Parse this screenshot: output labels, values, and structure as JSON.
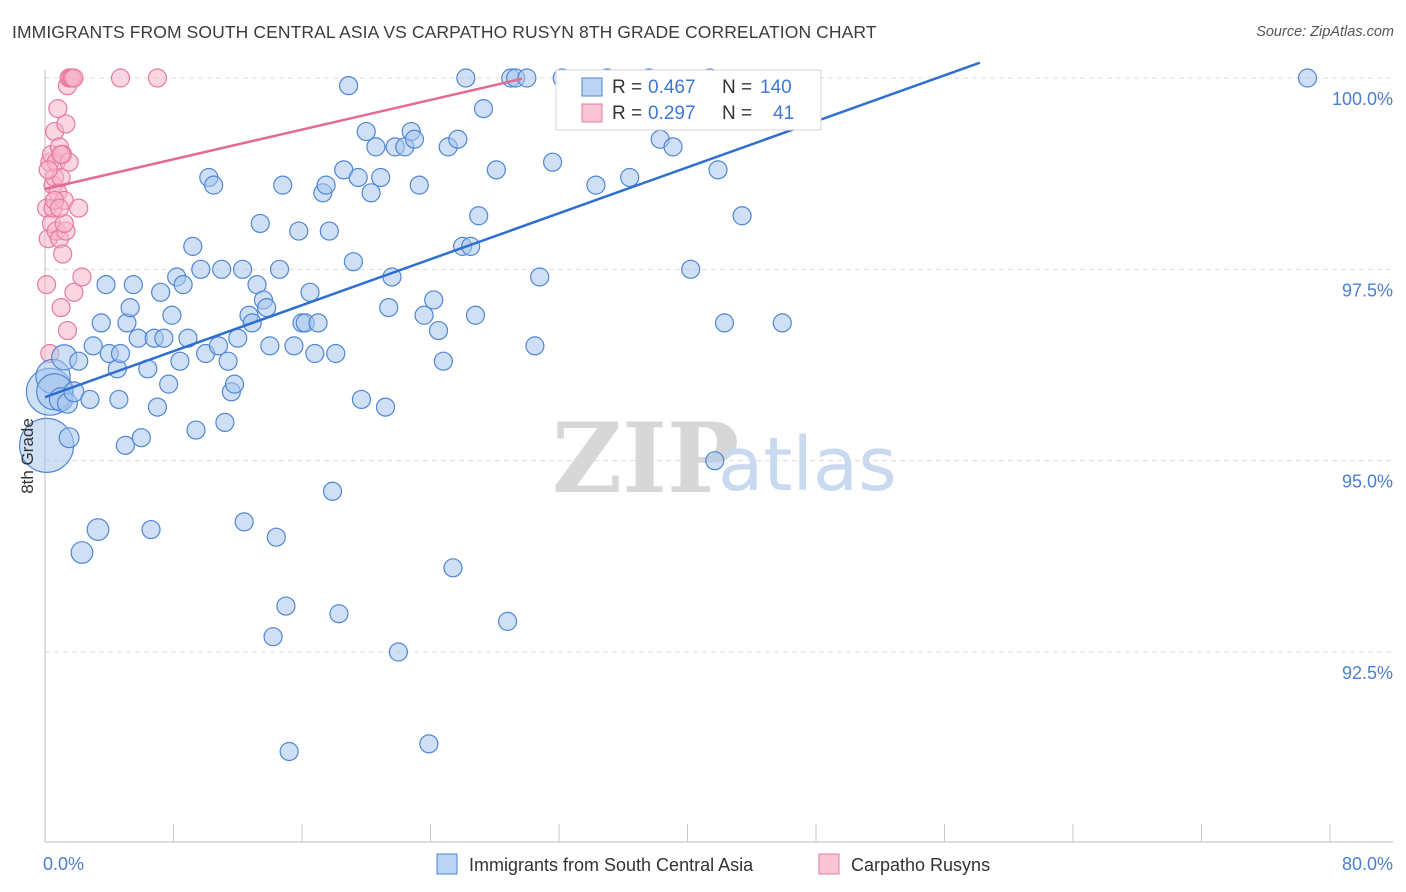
{
  "header": {
    "title": "IMMIGRANTS FROM SOUTH CENTRAL ASIA VS CARPATHO RUSYN 8TH GRADE CORRELATION CHART",
    "source": "Source: ZipAtlas.com"
  },
  "watermark": {
    "zip": "ZIP",
    "atlas": "atlas"
  },
  "colors": {
    "blue": "#4f86d4",
    "blue_fill": "#a8c7ef",
    "pink": "#e7799f",
    "pink_fill": "#f6b5c9",
    "blue_line": "#2f6fcf",
    "pink_line": "#e46b93"
  },
  "chart_data": {
    "type": "scatter",
    "title": "IMMIGRANTS FROM SOUTH CENTRAL ASIA VS CARPATHO RUSYN 8TH GRADE CORRELATION CHART",
    "xlabel": "",
    "ylabel": "8th Grade",
    "xlim": [
      0,
      80
    ],
    "ylim": [
      90.0,
      100.4
    ],
    "x_tick_labels": [
      "0.0%",
      "80.0%"
    ],
    "y_ticks": [
      92.5,
      95.0,
      97.5,
      100.0
    ],
    "y_tick_labels": [
      "92.5%",
      "95.0%",
      "97.5%",
      "100.0%"
    ],
    "grid": true,
    "legend_top": [
      {
        "series": "blue",
        "r_label": "R =",
        "r_value": "0.467",
        "n_label": "N =",
        "n_value": "140"
      },
      {
        "series": "pink",
        "r_label": "R =",
        "r_value": "0.297",
        "n_label": "N =",
        "n_value": "41"
      }
    ],
    "legend_bottom": [
      "Immigrants from South Central Asia",
      "Carpatho Rusyns"
    ],
    "series": [
      {
        "name": "Immigrants from South Central Asia",
        "color": "blue",
        "trend": {
          "x": [
            0,
            58.2
          ],
          "y": [
            95.83,
            100.2
          ]
        },
        "points": [
          [
            0.1,
            95.2,
            3
          ],
          [
            0.3,
            95.9,
            2.6
          ],
          [
            0.5,
            96.1,
            1.9
          ],
          [
            0.6,
            95.9,
            2
          ],
          [
            1.0,
            95.8,
            1.3
          ],
          [
            1.2,
            96.35,
            1.4
          ],
          [
            1.4,
            95.75,
            1.1
          ],
          [
            1.5,
            95.3,
            1.1
          ],
          [
            1.8,
            95.9,
            1.1
          ],
          [
            2.1,
            96.3,
            1
          ],
          [
            2.3,
            93.8,
            1.2
          ],
          [
            2.8,
            95.8,
            1
          ],
          [
            3.0,
            96.5,
            1
          ],
          [
            3.3,
            94.1,
            1.2
          ],
          [
            3.5,
            96.8,
            1
          ],
          [
            3.8,
            97.3,
            1
          ],
          [
            4.0,
            96.4,
            1
          ],
          [
            4.5,
            96.2,
            1
          ],
          [
            4.6,
            95.8,
            1
          ],
          [
            4.7,
            96.4,
            1
          ],
          [
            5.0,
            95.2,
            1
          ],
          [
            5.1,
            96.8,
            1
          ],
          [
            5.3,
            97.0,
            1
          ],
          [
            5.5,
            97.3,
            1
          ],
          [
            5.8,
            96.6,
            1
          ],
          [
            6.0,
            95.3,
            1
          ],
          [
            6.4,
            96.2,
            1
          ],
          [
            6.6,
            94.1,
            1
          ],
          [
            6.8,
            96.6,
            1
          ],
          [
            7.0,
            95.7,
            1
          ],
          [
            7.2,
            97.2,
            1
          ],
          [
            7.4,
            96.6,
            1
          ],
          [
            7.7,
            96.0,
            1
          ],
          [
            7.9,
            96.9,
            1
          ],
          [
            8.2,
            97.4,
            1
          ],
          [
            8.4,
            96.3,
            1
          ],
          [
            8.6,
            97.3,
            1
          ],
          [
            8.9,
            96.6,
            1
          ],
          [
            9.2,
            97.8,
            1
          ],
          [
            9.4,
            95.4,
            1
          ],
          [
            9.7,
            97.5,
            1
          ],
          [
            10.0,
            96.4,
            1
          ],
          [
            10.2,
            98.7,
            1
          ],
          [
            10.5,
            98.6,
            1
          ],
          [
            10.8,
            96.5,
            1
          ],
          [
            11.0,
            97.5,
            1
          ],
          [
            11.2,
            95.5,
            1
          ],
          [
            11.4,
            96.3,
            1
          ],
          [
            11.6,
            95.9,
            1
          ],
          [
            11.8,
            96.0,
            1
          ],
          [
            12.0,
            96.6,
            1
          ],
          [
            12.3,
            97.5,
            1
          ],
          [
            12.4,
            94.2,
            1
          ],
          [
            12.7,
            96.9,
            1
          ],
          [
            12.9,
            96.8,
            1
          ],
          [
            13.2,
            97.3,
            1
          ],
          [
            13.4,
            98.1,
            1
          ],
          [
            13.6,
            97.1,
            1
          ],
          [
            13.8,
            97.0,
            1
          ],
          [
            14.0,
            96.5,
            1
          ],
          [
            14.2,
            92.7,
            1
          ],
          [
            14.4,
            94.0,
            1
          ],
          [
            14.6,
            97.5,
            1
          ],
          [
            14.8,
            98.6,
            1
          ],
          [
            15.0,
            93.1,
            1
          ],
          [
            15.2,
            91.2,
            1
          ],
          [
            15.5,
            96.5,
            1
          ],
          [
            15.8,
            98.0,
            1
          ],
          [
            16.0,
            96.8,
            1
          ],
          [
            16.2,
            96.8,
            1
          ],
          [
            16.5,
            97.2,
            1
          ],
          [
            16.8,
            96.4,
            1
          ],
          [
            17.0,
            96.8,
            1
          ],
          [
            17.3,
            98.5,
            1
          ],
          [
            17.5,
            98.6,
            1
          ],
          [
            17.7,
            98.0,
            1
          ],
          [
            17.9,
            94.6,
            1
          ],
          [
            18.1,
            96.4,
            1
          ],
          [
            18.3,
            93.0,
            1
          ],
          [
            18.6,
            98.8,
            1
          ],
          [
            18.9,
            99.9,
            1
          ],
          [
            19.2,
            97.6,
            1
          ],
          [
            19.5,
            98.7,
            1
          ],
          [
            19.7,
            95.8,
            1
          ],
          [
            20.0,
            99.3,
            1
          ],
          [
            20.3,
            98.5,
            1
          ],
          [
            20.6,
            99.1,
            1
          ],
          [
            20.9,
            98.7,
            1
          ],
          [
            21.2,
            95.7,
            1
          ],
          [
            21.4,
            97.0,
            1
          ],
          [
            21.6,
            97.4,
            1
          ],
          [
            21.8,
            99.1,
            1
          ],
          [
            22.0,
            92.5,
            1
          ],
          [
            22.4,
            99.1,
            1
          ],
          [
            22.8,
            99.3,
            1
          ],
          [
            23.0,
            99.2,
            1
          ],
          [
            23.3,
            98.6,
            1
          ],
          [
            23.6,
            96.9,
            1
          ],
          [
            23.9,
            91.3,
            1
          ],
          [
            24.2,
            97.1,
            1
          ],
          [
            24.5,
            96.7,
            1
          ],
          [
            24.8,
            96.3,
            1
          ],
          [
            25.1,
            99.1,
            1
          ],
          [
            25.4,
            93.6,
            1
          ],
          [
            25.7,
            99.2,
            1
          ],
          [
            26.0,
            97.8,
            1
          ],
          [
            26.2,
            100.0,
            1
          ],
          [
            26.5,
            97.8,
            1
          ],
          [
            26.8,
            96.9,
            1
          ],
          [
            27.0,
            98.2,
            1
          ],
          [
            27.3,
            99.6,
            1
          ],
          [
            28.1,
            98.8,
            1
          ],
          [
            28.8,
            92.9,
            1
          ],
          [
            29.0,
            100.0,
            1
          ],
          [
            29.3,
            100.0,
            1
          ],
          [
            30.0,
            100.0,
            1
          ],
          [
            30.5,
            96.5,
            1
          ],
          [
            30.8,
            97.4,
            1
          ],
          [
            31.6,
            98.9,
            1
          ],
          [
            32.2,
            100.0,
            1
          ],
          [
            34.3,
            98.6,
            1
          ],
          [
            35.0,
            100.0,
            1
          ],
          [
            35.8,
            99.6,
            1
          ],
          [
            36.4,
            98.7,
            1
          ],
          [
            37.6,
            100.0,
            1
          ],
          [
            38.3,
            99.2,
            1
          ],
          [
            39.1,
            99.1,
            1
          ],
          [
            40.2,
            97.5,
            1
          ],
          [
            41.4,
            100.0,
            1
          ],
          [
            41.7,
            95.0,
            1
          ],
          [
            41.9,
            98.8,
            1
          ],
          [
            42.3,
            96.8,
            1
          ],
          [
            43.4,
            98.2,
            1
          ],
          [
            45.9,
            96.8,
            1
          ],
          [
            78.6,
            100.0,
            1
          ]
        ]
      },
      {
        "name": "Carpatho Rusyns",
        "color": "pink",
        "trend": {
          "x": [
            0,
            29.7
          ],
          "y": [
            98.55,
            99.99
          ]
        },
        "points": [
          [
            0.1,
            97.3,
            1
          ],
          [
            0.1,
            98.3,
            1
          ],
          [
            0.2,
            97.9,
            1
          ],
          [
            0.3,
            98.9,
            1
          ],
          [
            0.3,
            96.4,
            1
          ],
          [
            0.4,
            99.0,
            1
          ],
          [
            0.4,
            98.1,
            1
          ],
          [
            0.5,
            98.6,
            1
          ],
          [
            0.5,
            98.3,
            1
          ],
          [
            0.6,
            99.3,
            1
          ],
          [
            0.6,
            98.7,
            1
          ],
          [
            0.7,
            98.9,
            1
          ],
          [
            0.7,
            98.0,
            1
          ],
          [
            0.8,
            99.6,
            1
          ],
          [
            0.8,
            98.5,
            1
          ],
          [
            0.9,
            99.1,
            1
          ],
          [
            0.9,
            97.9,
            1
          ],
          [
            1.0,
            98.7,
            1
          ],
          [
            1.0,
            97.0,
            1
          ],
          [
            1.1,
            99.0,
            1
          ],
          [
            1.1,
            97.7,
            1
          ],
          [
            1.2,
            98.4,
            1
          ],
          [
            1.3,
            99.4,
            1
          ],
          [
            1.3,
            98.0,
            1
          ],
          [
            1.4,
            99.9,
            1
          ],
          [
            1.4,
            96.7,
            1
          ],
          [
            1.5,
            98.9,
            1
          ],
          [
            1.5,
            100.0,
            1
          ],
          [
            1.6,
            100.0,
            1
          ],
          [
            1.7,
            100.0,
            1
          ],
          [
            1.8,
            100.0,
            1
          ],
          [
            1.8,
            97.2,
            1
          ],
          [
            2.1,
            98.3,
            1
          ],
          [
            2.3,
            97.4,
            1
          ],
          [
            4.7,
            100.0,
            1
          ],
          [
            7.0,
            100.0,
            1
          ],
          [
            0.2,
            98.8,
            1
          ],
          [
            0.6,
            98.4,
            1
          ],
          [
            1.2,
            98.1,
            1
          ],
          [
            0.9,
            98.3,
            1
          ],
          [
            1.0,
            99.0,
            1
          ]
        ]
      }
    ]
  }
}
